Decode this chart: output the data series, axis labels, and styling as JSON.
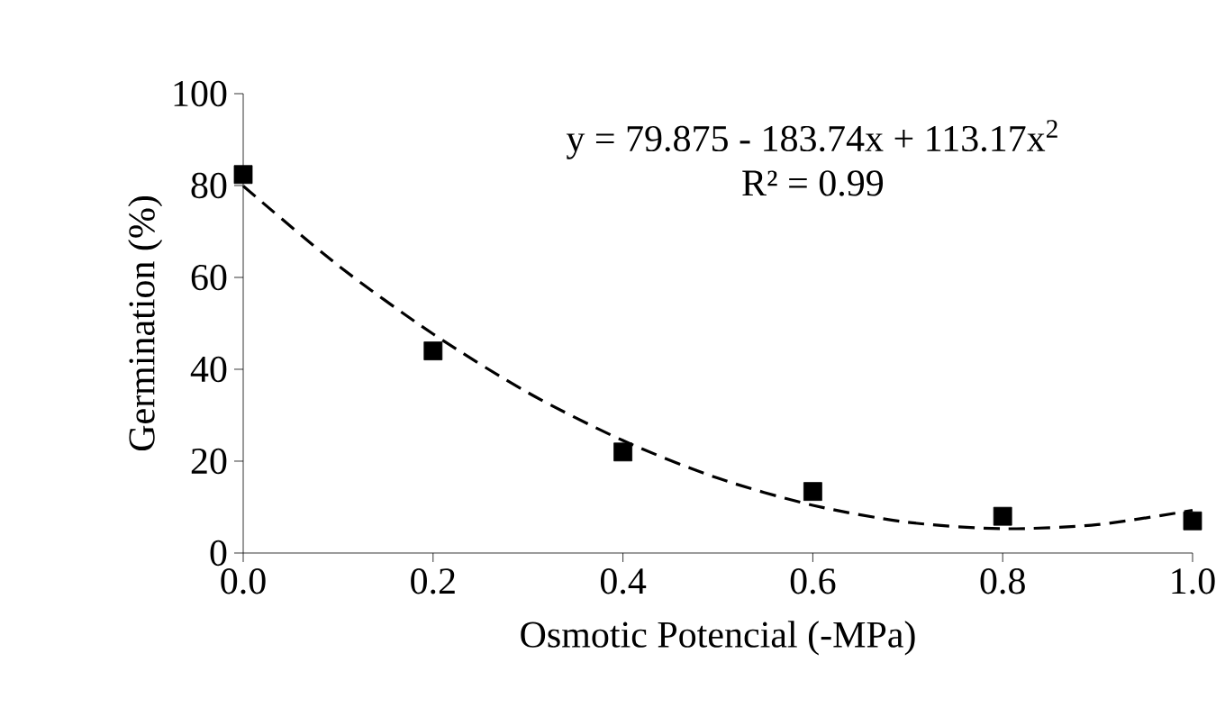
{
  "chart_data": {
    "type": "scatter",
    "xlabel": "Osmotic Potencial (-MPa)",
    "ylabel": "Germination (%)",
    "x": [
      0.0,
      0.2,
      0.4,
      0.6,
      0.8,
      1.0
    ],
    "series": [
      {
        "color": "#000000",
        "marker": "square",
        "values": [
          82.4,
          44,
          22,
          13.4,
          8,
          7
        ]
      },
      {
        "type": "line",
        "color": "#000000",
        "marker": "none",
        "line_style": "dashed",
        "x": [
          0.0,
          0.1,
          0.2,
          0.3,
          0.4,
          0.5,
          0.6,
          0.7,
          0.8,
          0.9,
          1.0
        ],
        "values": [
          79.9,
          62.6,
          47.7,
          34.9,
          24.5,
          16.3,
          10.4,
          6.7,
          5.3,
          6.2,
          9.3
        ]
      }
    ],
    "xlim": [
      0,
      1
    ],
    "ylim": [
      0,
      100
    ],
    "xticks": [
      {
        "value": 0,
        "label": "0.0"
      },
      {
        "value": 0.2,
        "label": "0.2"
      },
      {
        "value": 0.4,
        "label": "0.4"
      },
      {
        "value": 0.6,
        "label": "0.6"
      },
      {
        "value": 0.8,
        "label": "0.8"
      },
      {
        "value": 1.0,
        "label": "1.0"
      }
    ],
    "yticks": [
      0,
      20,
      40,
      60,
      80,
      100
    ],
    "annotations": [
      "y = 79.875 - 183.74x + 113.17x$^{2}$",
      "R² = 0.99"
    ],
    "grid": false
  }
}
